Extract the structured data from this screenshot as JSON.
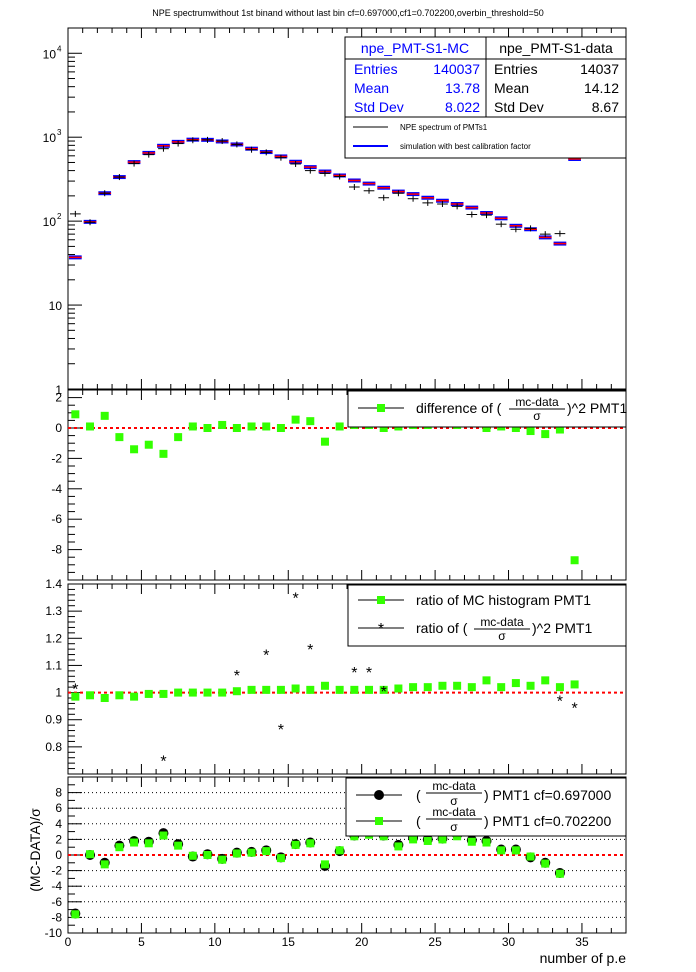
{
  "title": "NPE spectrumwithout 1st binand without last bin cf=0.697000,cf1=0.702200,overbin_threshold=50",
  "stats": {
    "mc": {
      "name": "npe_PMT-S1-MC",
      "rows": [
        [
          "Entries",
          "140037"
        ],
        [
          "Mean",
          "13.78"
        ],
        [
          "Std Dev",
          "8.022"
        ]
      ]
    },
    "data": {
      "name": "npe_PMT-S1-data",
      "rows": [
        [
          "Entries",
          "14037"
        ],
        [
          "Mean",
          "14.12"
        ],
        [
          "Std Dev",
          "8.67"
        ]
      ]
    },
    "legend": [
      "NPE spectrum of PMTs1",
      "simulation with best calibration factor"
    ]
  },
  "colors": {
    "mc_fill": "#0000ff",
    "mc_line": "#ff0000",
    "marker_green": "#33ff00",
    "reference_line": "#ff0000",
    "data_points": "#000000"
  },
  "chart_data": [
    {
      "type": "scatter",
      "panel": "spectrum",
      "yscale": "log",
      "xlim": [
        0,
        38
      ],
      "ylim": [
        1,
        20000
      ],
      "ytick_labels": [
        "1",
        "10",
        "10^2",
        "10^3",
        "10^4"
      ],
      "series": [
        {
          "name": "NPE spectrum of PMTs1",
          "x": [
            0.5,
            1.5,
            2.5,
            3.5,
            4.5,
            5.5,
            6.5,
            7.5,
            8.5,
            9.5,
            10.5,
            11.5,
            12.5,
            13.5,
            14.5,
            15.5,
            16.5,
            17.5,
            18.5,
            19.5,
            20.5,
            21.5,
            22.5,
            23.5,
            24.5,
            25.5,
            26.5,
            27.5,
            28.5,
            29.5,
            30.5,
            31.5,
            32.5,
            33.5,
            34.5
          ],
          "values": [
            122,
            97,
            215,
            335,
            485,
            620,
            730,
            840,
            920,
            930,
            900,
            820,
            710,
            660,
            570,
            480,
            400,
            370,
            340,
            255,
            230,
            190,
            215,
            185,
            165,
            160,
            150,
            120,
            118,
            92,
            80,
            82,
            70,
            71,
            950
          ]
        },
        {
          "name": "simulation with best calibration factor",
          "x": [
            0.5,
            1.5,
            2.5,
            3.5,
            4.5,
            5.5,
            6.5,
            7.5,
            8.5,
            9.5,
            10.5,
            11.5,
            12.5,
            13.5,
            14.5,
            15.5,
            16.5,
            17.5,
            18.5,
            19.5,
            20.5,
            21.5,
            22.5,
            23.5,
            24.5,
            25.5,
            26.5,
            27.5,
            28.5,
            29.5,
            30.5,
            31.5,
            32.5,
            33.5,
            34.5
          ],
          "values": [
            37,
            98,
            215,
            335,
            505,
            650,
            790,
            880,
            935,
            930,
            890,
            820,
            730,
            665,
            590,
            510,
            440,
            390,
            350,
            305,
            280,
            250,
            225,
            210,
            190,
            175,
            160,
            145,
            125,
            108,
            88,
            80,
            64,
            54,
            550
          ]
        }
      ]
    },
    {
      "type": "scatter",
      "panel": "difference",
      "xlim": [
        0,
        38
      ],
      "ylim": [
        -10,
        2.5
      ],
      "ytick_labels": [
        "2",
        "0",
        "-2",
        "-4",
        "-6",
        "-8"
      ],
      "reference_y": 0,
      "series": [
        {
          "name": "difference of (mc-data / σ)^2 PMT1",
          "x": [
            0.5,
            1.5,
            2.5,
            3.5,
            4.5,
            5.5,
            6.5,
            7.5,
            8.5,
            9.5,
            10.5,
            11.5,
            12.5,
            13.5,
            14.5,
            15.5,
            16.5,
            17.5,
            18.5,
            19.5,
            20.5,
            21.5,
            22.5,
            23.5,
            24.5,
            25.5,
            26.5,
            27.5,
            28.5,
            29.5,
            30.5,
            31.5,
            32.5,
            33.5,
            34.5
          ],
          "values": [
            0.9,
            0.1,
            0.8,
            -0.6,
            -1.4,
            -1.1,
            -1.7,
            -0.6,
            0.1,
            0.0,
            0.2,
            0.0,
            0.1,
            0.1,
            0.0,
            0.55,
            0.45,
            -0.9,
            0.1,
            0.2,
            0.2,
            0.0,
            0.1,
            0.2,
            0.2,
            0.3,
            0.2,
            0.3,
            0.0,
            0.1,
            0.0,
            -0.2,
            -0.4,
            -0.1,
            -8.7
          ]
        }
      ]
    },
    {
      "type": "scatter",
      "panel": "ratio",
      "xlim": [
        0,
        38
      ],
      "ylim": [
        0.7,
        1.4
      ],
      "ytick_labels": [
        "0.8",
        "0.9",
        "1",
        "1.1",
        "1.2",
        "1.3",
        "1.4"
      ],
      "reference_y": 1,
      "series": [
        {
          "name": "ratio of MC histogram  PMT1",
          "x": [
            0.5,
            1.5,
            2.5,
            3.5,
            4.5,
            5.5,
            6.5,
            7.5,
            8.5,
            9.5,
            10.5,
            11.5,
            12.5,
            13.5,
            14.5,
            15.5,
            16.5,
            17.5,
            18.5,
            19.5,
            20.5,
            21.5,
            22.5,
            23.5,
            24.5,
            25.5,
            26.5,
            27.5,
            28.5,
            29.5,
            30.5,
            31.5,
            32.5,
            33.5,
            34.5
          ],
          "values": [
            0.985,
            0.99,
            0.98,
            0.99,
            0.985,
            0.995,
            0.995,
            1.0,
            1.0,
            1.0,
            1.0,
            1.005,
            1.01,
            1.01,
            1.01,
            1.015,
            1.01,
            1.025,
            1.01,
            1.01,
            1.01,
            1.01,
            1.015,
            1.02,
            1.02,
            1.025,
            1.025,
            1.02,
            1.045,
            1.02,
            1.035,
            1.025,
            1.045,
            1.02,
            1.03
          ]
        },
        {
          "name": "ratio of (mc-data / σ)^2 PMT1",
          "x": [
            0.5,
            6.5,
            11.5,
            13.5,
            14.5,
            15.5,
            16.5,
            19.5,
            20.5,
            21.5,
            33.5,
            34.5
          ],
          "values": [
            1.015,
            0.75,
            1.065,
            1.14,
            0.865,
            1.35,
            1.16,
            1.075,
            1.075,
            1.005,
            0.97,
            0.945
          ]
        }
      ]
    },
    {
      "type": "scatter",
      "panel": "pulls",
      "xlim": [
        0,
        38
      ],
      "ylim": [
        -10,
        10
      ],
      "ylabel": "(MC-DATA)/σ",
      "xlabel": "number of p.e",
      "xtick_labels": [
        "0",
        "5",
        "10",
        "15",
        "20",
        "25",
        "30",
        "35"
      ],
      "ytick_labels": [
        "8",
        "6",
        "4",
        "2",
        "0",
        "-2",
        "-4",
        "-6",
        "-8",
        "-10"
      ],
      "reference_y": 0,
      "series": [
        {
          "name": "(mc-data / σ) PMT1 cf=0.697000",
          "x": [
            0.5,
            1.5,
            2.5,
            3.5,
            4.5,
            5.5,
            6.5,
            7.5,
            8.5,
            9.5,
            10.5,
            11.5,
            12.5,
            13.5,
            14.5,
            15.5,
            16.5,
            17.5,
            18.5,
            19.5,
            20.5,
            21.5,
            22.5,
            23.5,
            24.5,
            25.5,
            26.5,
            27.5,
            28.5,
            29.5,
            30.5,
            31.5,
            32.5,
            33.5
          ],
          "values": [
            -7.5,
            0.0,
            -1.0,
            1.2,
            1.8,
            1.7,
            2.8,
            1.4,
            -0.2,
            0.1,
            -0.5,
            0.3,
            0.4,
            0.6,
            -0.3,
            1.4,
            1.6,
            -1.4,
            0.5,
            2.5,
            2.8,
            2.5,
            1.3,
            2.2,
            2.0,
            2.1,
            2.6,
            1.9,
            1.8,
            0.7,
            0.7,
            -0.3,
            -1.0,
            -2.3
          ]
        },
        {
          "name": "(mc-data / σ) PMT1 cf=0.702200",
          "x": [
            0.5,
            1.5,
            2.5,
            3.5,
            4.5,
            5.5,
            6.5,
            7.5,
            8.5,
            9.5,
            10.5,
            11.5,
            12.5,
            13.5,
            14.5,
            15.5,
            16.5,
            17.5,
            18.5,
            19.5,
            20.5,
            21.5,
            22.5,
            23.5,
            24.5,
            25.5,
            26.5,
            27.5,
            28.5,
            29.5,
            30.5,
            31.5,
            32.5,
            33.5
          ],
          "values": [
            -7.6,
            0.1,
            -1.2,
            1.0,
            1.6,
            1.5,
            2.5,
            1.2,
            -0.1,
            0.0,
            -0.6,
            0.2,
            0.3,
            0.5,
            -0.4,
            1.3,
            1.5,
            -1.2,
            0.6,
            2.4,
            2.6,
            2.4,
            1.1,
            2.0,
            1.8,
            2.0,
            2.4,
            1.7,
            1.6,
            0.6,
            0.6,
            -0.2,
            -1.1,
            -2.4
          ]
        }
      ]
    }
  ]
}
